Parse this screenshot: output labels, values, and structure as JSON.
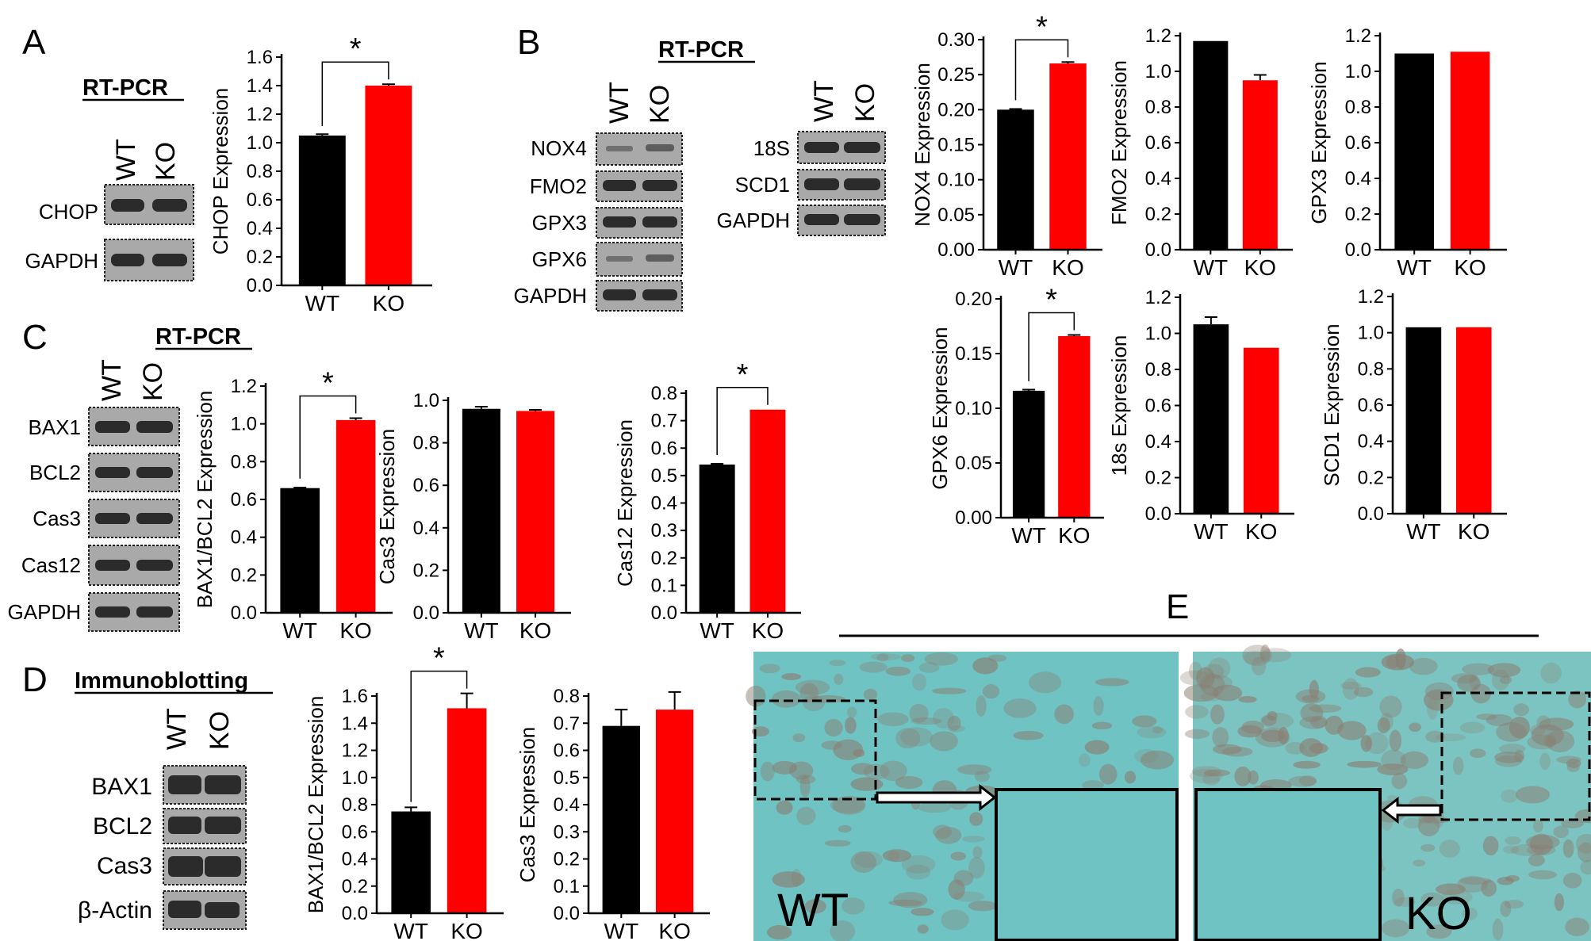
{
  "panels": {
    "A": {
      "letter": "A",
      "heading": "RT-PCR",
      "lanes": [
        "WT",
        "KO"
      ],
      "bands": [
        "CHOP",
        "GAPDH"
      ]
    },
    "B": {
      "letter": "B",
      "heading": "RT-PCR",
      "lanes": [
        "WT",
        "KO"
      ],
      "bands_left": [
        "NOX4",
        "FMO2",
        "GPX3",
        "GPX6",
        "GAPDH"
      ],
      "lanes_right": [
        "WT",
        "KO"
      ],
      "bands_right": [
        "18S",
        "SCD1",
        "GAPDH"
      ]
    },
    "C": {
      "letter": "C",
      "heading": "RT-PCR",
      "lanes": [
        "WT",
        "KO"
      ],
      "bands": [
        "BAX1",
        "BCL2",
        "Cas3",
        "Cas12",
        "GAPDH"
      ]
    },
    "D": {
      "letter": "D",
      "heading": "Immunoblotting",
      "lanes": [
        "WT",
        "KO"
      ],
      "bands": [
        "BAX1",
        "BCL2",
        "Cas3",
        "β-Actin"
      ]
    },
    "E": {
      "letter": "E",
      "left_label": "WT",
      "right_label": "KO"
    }
  },
  "colors": {
    "wt": "#000000",
    "ko": "#ff0000",
    "tissue_bg": "#6fc3c3",
    "tissue_spot": "#8a7e72"
  },
  "chart_data": [
    {
      "id": "A-CHOP",
      "type": "bar",
      "categories": [
        "WT",
        "KO"
      ],
      "values": [
        1.05,
        1.4
      ],
      "errors": [
        0.01,
        0.01
      ],
      "ylabel": "CHOP Expression",
      "ylim": [
        0,
        1.6
      ],
      "yticks": [
        "0.0",
        "0.2",
        "0.4",
        "0.6",
        "0.8",
        "1.0",
        "1.2",
        "1.4",
        "1.6"
      ],
      "significance": "*"
    },
    {
      "id": "B-NOX4",
      "type": "bar",
      "categories": [
        "WT",
        "KO"
      ],
      "values": [
        0.2,
        0.266
      ],
      "errors": [
        0.001,
        0.002
      ],
      "ylabel": "NOX4 Expression",
      "ylim": [
        0,
        0.3
      ],
      "yticks": [
        "0.00",
        "0.05",
        "0.10",
        "0.15",
        "0.20",
        "0.25",
        "0.30"
      ],
      "significance": "*"
    },
    {
      "id": "B-FMO2",
      "type": "bar",
      "categories": [
        "WT",
        "KO"
      ],
      "values": [
        1.17,
        0.95
      ],
      "errors": [
        0.0,
        0.03
      ],
      "ylabel": "FMO2 Expression",
      "ylim": [
        0,
        1.2
      ],
      "yticks": [
        "0.0",
        "0.2",
        "0.4",
        "0.6",
        "0.8",
        "1.0",
        "1.2"
      ],
      "significance": ""
    },
    {
      "id": "B-GPX3",
      "type": "bar",
      "categories": [
        "WT",
        "KO"
      ],
      "values": [
        1.1,
        1.11
      ],
      "errors": [
        0.0,
        0.0
      ],
      "ylabel": "GPX3 Expression",
      "ylim": [
        0,
        1.2
      ],
      "yticks": [
        "0.0",
        "0.2",
        "0.4",
        "0.6",
        "0.8",
        "1.0",
        "1.2"
      ],
      "significance": ""
    },
    {
      "id": "B-GPX6",
      "type": "bar",
      "categories": [
        "WT",
        "KO"
      ],
      "values": [
        0.116,
        0.166
      ],
      "errors": [
        0.001,
        0.001
      ],
      "ylabel": "GPX6 Expression",
      "ylim": [
        0,
        0.2
      ],
      "yticks": [
        "0.00",
        "0.05",
        "0.10",
        "0.15",
        "0.20"
      ],
      "significance": "*"
    },
    {
      "id": "B-18s",
      "type": "bar",
      "categories": [
        "WT",
        "KO"
      ],
      "values": [
        1.05,
        0.92
      ],
      "errors": [
        0.04,
        0.0
      ],
      "ylabel": "18s Expression",
      "ylim": [
        0,
        1.2
      ],
      "yticks": [
        "0.0",
        "0.2",
        "0.4",
        "0.6",
        "0.8",
        "1.0",
        "1.2"
      ],
      "significance": ""
    },
    {
      "id": "B-SCD1",
      "type": "bar",
      "categories": [
        "WT",
        "KO"
      ],
      "values": [
        1.03,
        1.03
      ],
      "errors": [
        0.0,
        0.0
      ],
      "ylabel": "SCD1 Expression",
      "ylim": [
        0,
        1.2
      ],
      "yticks": [
        "0.0",
        "0.2",
        "0.4",
        "0.6",
        "0.8",
        "1.0",
        "1.2"
      ],
      "significance": ""
    },
    {
      "id": "C-BAX1BCL2",
      "type": "bar",
      "categories": [
        "WT",
        "KO"
      ],
      "values": [
        0.66,
        1.02
      ],
      "errors": [
        0.003,
        0.01
      ],
      "ylabel": "BAX1/BCL2 Expression",
      "ylim": [
        0,
        1.2
      ],
      "yticks": [
        "0.0",
        "0.2",
        "0.4",
        "0.6",
        "0.8",
        "1.0",
        "1.2"
      ],
      "significance": "*"
    },
    {
      "id": "C-Cas3",
      "type": "bar",
      "categories": [
        "WT",
        "KO"
      ],
      "values": [
        0.96,
        0.95
      ],
      "errors": [
        0.01,
        0.005
      ],
      "ylabel": "Cas3 Expression",
      "ylim": [
        0,
        1.0
      ],
      "yticks": [
        "0.0",
        "0.2",
        "0.4",
        "0.6",
        "0.8",
        "1.0"
      ],
      "significance": ""
    },
    {
      "id": "C-Cas12",
      "type": "bar",
      "categories": [
        "WT",
        "KO"
      ],
      "values": [
        0.54,
        0.74
      ],
      "errors": [
        0.003,
        0.0
      ],
      "ylabel": "Cas12 Expression",
      "ylim": [
        0,
        0.8
      ],
      "yticks": [
        "0.0",
        "0.1",
        "0.2",
        "0.3",
        "0.4",
        "0.5",
        "0.6",
        "0.7",
        "0.8"
      ],
      "significance": "*"
    },
    {
      "id": "D-BAX1BCL2",
      "type": "bar",
      "categories": [
        "WT",
        "KO"
      ],
      "values": [
        0.75,
        1.51
      ],
      "errors": [
        0.03,
        0.11
      ],
      "ylabel": "BAX1/BCL2 Expression",
      "ylim": [
        0,
        1.6
      ],
      "yticks": [
        "0.0",
        "0.2",
        "0.4",
        "0.6",
        "0.8",
        "1.0",
        "1.2",
        "1.4",
        "1.6"
      ],
      "significance": "*"
    },
    {
      "id": "D-Cas3",
      "type": "bar",
      "categories": [
        "WT",
        "KO"
      ],
      "values": [
        0.69,
        0.75
      ],
      "errors": [
        0.06,
        0.065
      ],
      "ylabel": "Cas3 Expression",
      "ylim": [
        0,
        0.8
      ],
      "yticks": [
        "0.0",
        "0.1",
        "0.2",
        "0.3",
        "0.4",
        "0.5",
        "0.6",
        "0.7",
        "0.8"
      ],
      "significance": ""
    }
  ]
}
